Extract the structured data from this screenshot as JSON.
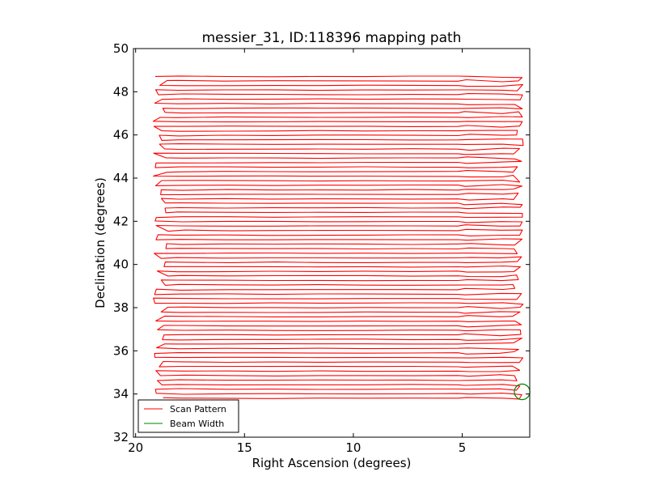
{
  "chart_data": {
    "type": "line",
    "title": "messier_31, ID:118396 mapping path",
    "xlabel": "Right Ascension (degrees)",
    "ylabel": "Declination (degrees)",
    "xlim": [
      20.1,
      1.9
    ],
    "ylim": [
      32,
      50
    ],
    "x_reversed": true,
    "xticks": [
      20,
      15,
      10,
      5
    ],
    "yticks": [
      32,
      34,
      36,
      38,
      40,
      42,
      44,
      46,
      48,
      50
    ],
    "xtick_labels": [
      "20",
      "15",
      "10",
      "5"
    ],
    "ytick_labels": [
      "32",
      "34",
      "36",
      "38",
      "40",
      "42",
      "44",
      "46",
      "48",
      "50"
    ],
    "grid": false,
    "legend_position": "lower-left",
    "series": [
      {
        "name": "Scan Pattern",
        "color": "#ff0000",
        "pattern": "raster",
        "ra_range": [
          19.2,
          2.6
        ],
        "dec_range": [
          33.8,
          48.8
        ],
        "row_spacing": 0.21
      },
      {
        "name": "Beam Width",
        "color": "#008000",
        "shape": "circle",
        "center": [
          2.25,
          34.1
        ],
        "radius_deg": 0.36
      }
    ]
  }
}
